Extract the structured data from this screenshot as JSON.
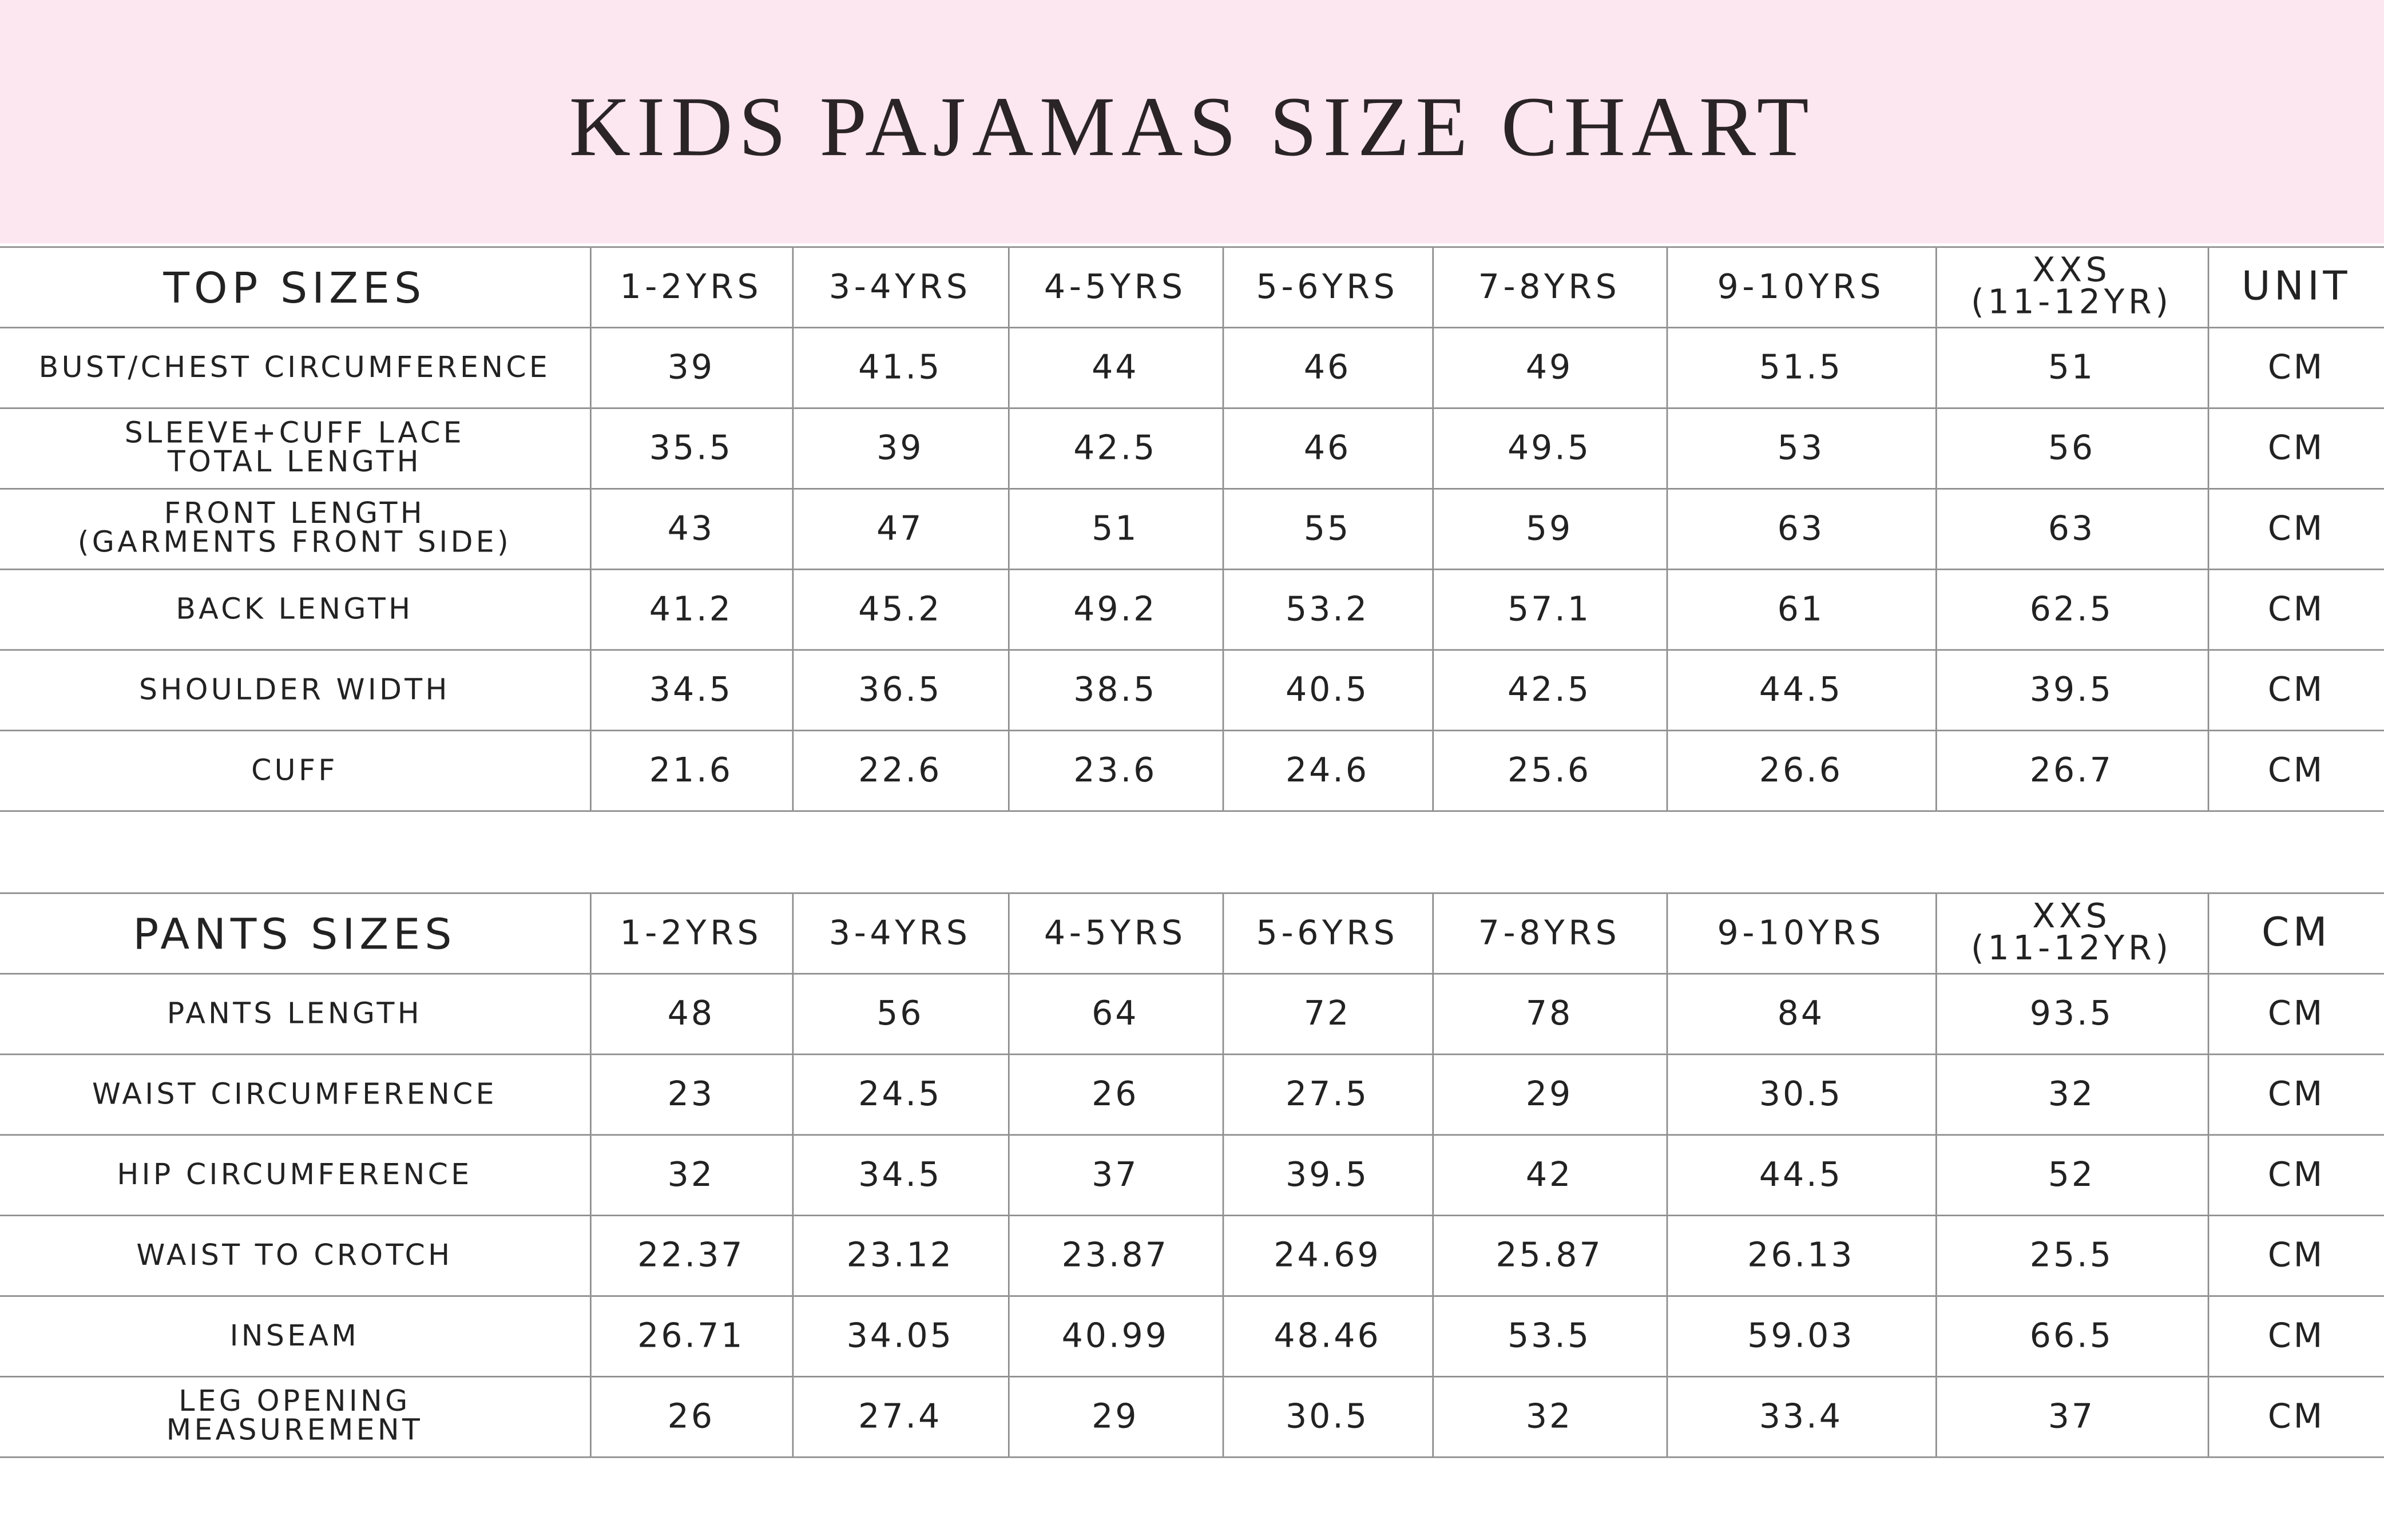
{
  "title": "KIDS PAJAMAS SIZE CHART",
  "tables": [
    {
      "header": [
        "TOP SIZES",
        "1-2YRS",
        "3-4YRS",
        "4-5YRS",
        "5-6YRS",
        "7-8YRS",
        "9-10YRS",
        "XXS\n(11-12YR)",
        "UNIT"
      ],
      "rows": [
        [
          "BUST/CHEST CIRCUMFERENCE",
          39,
          41.5,
          44,
          46,
          49,
          51.5,
          51,
          "CM"
        ],
        [
          "SLEEVE+CUFF LACE\nTOTAL LENGTH",
          35.5,
          39,
          42.5,
          46,
          49.5,
          53,
          56,
          "CM"
        ],
        [
          "FRONT LENGTH\n(GARMENTS FRONT SIDE)",
          43,
          47,
          51,
          55,
          59,
          63,
          63,
          "CM"
        ],
        [
          "BACK LENGTH",
          41.2,
          45.2,
          49.2,
          53.2,
          57.1,
          61,
          62.5,
          "CM"
        ],
        [
          "SHOULDER WIDTH",
          34.5,
          36.5,
          38.5,
          40.5,
          42.5,
          44.5,
          39.5,
          "CM"
        ],
        [
          "CUFF",
          21.6,
          22.6,
          23.6,
          24.6,
          25.6,
          26.6,
          26.7,
          "CM"
        ]
      ]
    },
    {
      "header": [
        "PANTS SIZES",
        "1-2YRS",
        "3-4YRS",
        "4-5YRS",
        "5-6YRS",
        "7-8YRS",
        "9-10YRS",
        "XXS\n(11-12YR)",
        "CM"
      ],
      "rows": [
        [
          "PANTS LENGTH",
          48,
          56,
          64,
          72,
          78,
          84,
          93.5,
          "CM"
        ],
        [
          "WAIST CIRCUMFERENCE",
          23,
          24.5,
          26,
          27.5,
          29,
          30.5,
          32,
          "CM"
        ],
        [
          "HIP CIRCUMFERENCE",
          32,
          34.5,
          37,
          39.5,
          42,
          44.5,
          52,
          "CM"
        ],
        [
          "WAIST TO CROTCH",
          22.37,
          23.12,
          23.87,
          24.69,
          25.87,
          26.13,
          25.5,
          "CM"
        ],
        [
          "INSEAM",
          26.71,
          34.05,
          40.99,
          48.46,
          53.5,
          59.03,
          66.5,
          "CM"
        ],
        [
          "LEG OPENING\nMEASUREMENT",
          26,
          27.4,
          29,
          30.5,
          32,
          33.4,
          37,
          "CM"
        ]
      ]
    }
  ]
}
